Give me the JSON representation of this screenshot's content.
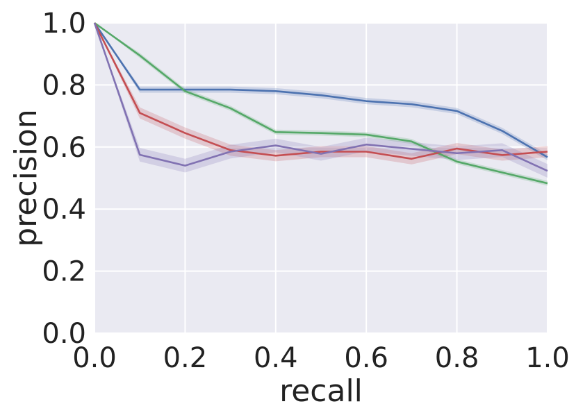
{
  "chart_data": {
    "type": "line",
    "title": "",
    "xlabel": "recall",
    "ylabel": "precision",
    "xlim": [
      0.0,
      1.0
    ],
    "ylim": [
      0.0,
      1.0
    ],
    "xticks": [
      "0.0",
      "0.2",
      "0.4",
      "0.6",
      "0.8",
      "1.0"
    ],
    "yticks": [
      "0.0",
      "0.2",
      "0.4",
      "0.6",
      "0.8",
      "1.0"
    ],
    "grid": true,
    "legend": "none",
    "x": [
      0.0,
      0.1,
      0.2,
      0.3,
      0.4,
      0.5,
      0.6,
      0.7,
      0.8,
      0.9,
      1.0
    ],
    "series": [
      {
        "color": "#4c72b0",
        "values": [
          1.0,
          0.785,
          0.785,
          0.785,
          0.78,
          0.767,
          0.748,
          0.738,
          0.716,
          0.652,
          0.567
        ],
        "band": 0.01
      },
      {
        "color": "#55a868",
        "values": [
          1.0,
          0.895,
          0.78,
          0.725,
          0.648,
          0.645,
          0.64,
          0.618,
          0.553,
          0.518,
          0.483
        ],
        "band": 0.008
      },
      {
        "color": "#c44e52",
        "values": [
          1.0,
          0.71,
          0.645,
          0.59,
          0.572,
          0.585,
          0.585,
          0.562,
          0.595,
          0.574,
          0.585
        ],
        "band": 0.018
      },
      {
        "color": "#8172b2",
        "values": [
          1.0,
          0.575,
          0.54,
          0.585,
          0.605,
          0.578,
          0.608,
          0.594,
          0.58,
          0.59,
          0.523
        ],
        "band": 0.022
      }
    ]
  }
}
